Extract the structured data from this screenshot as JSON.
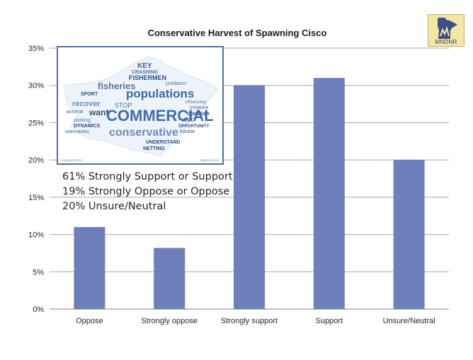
{
  "chart_data": {
    "type": "bar",
    "title": "Conservative Harvest of Spawning Cisco",
    "xlabel": "",
    "ylabel": "",
    "categories": [
      "Oppose",
      "Strongly oppose",
      "Strongly support",
      "Support",
      "Unsure/Neutral"
    ],
    "values": [
      0.11,
      0.082,
      0.3,
      0.31,
      0.2
    ],
    "ylim": [
      0,
      0.35
    ],
    "yticks": [
      0,
      0.05,
      0.1,
      0.15,
      0.2,
      0.25,
      0.3,
      0.35
    ],
    "ytick_labels": [
      "0%",
      "5%",
      "10%",
      "15%",
      "20%",
      "25%",
      "30%",
      "35%"
    ],
    "grid": true,
    "legend": "none",
    "bar_color": "#6f7fbb",
    "grid_color": "#a6a6a6"
  },
  "annotation": {
    "lines": [
      "61% Strongly Support or Support",
      "19% Strongly Oppose or Oppose",
      "20% Unsure/Neutral"
    ]
  },
  "wordcloud": {
    "border_color": "#4f6fa8",
    "words": {
      "commercial": "COMMERCIAL",
      "populations": "populations",
      "conservative": "conservative",
      "fisheries": "fisheries",
      "fishermen": "FISHERMEN",
      "crashing": "CRASHING",
      "key": "KEY",
      "recover": "recover",
      "want": "want",
      "sport": "SPORT",
      "stop": "STOP",
      "netting": "NETTING",
      "understand": "UNDERSTAND",
      "predators": "predators",
      "working": "working",
      "dynamics": "DYNAMICS",
      "opportunity": "OPPORTUNITY",
      "consider": "CONSIDER",
      "trouble": "trouble",
      "situation": "SITUATION",
      "monitor": "MONITOR",
      "rebounding": "REBOUNDING",
      "influencing": "influencing",
      "ask": "ASK"
    },
    "footer_left": "Copyright 2014",
    "footer_right": "Tagxedo.com"
  },
  "logo": {
    "text": "MNDNR",
    "icon": "minnesota-state-outline-icon"
  }
}
